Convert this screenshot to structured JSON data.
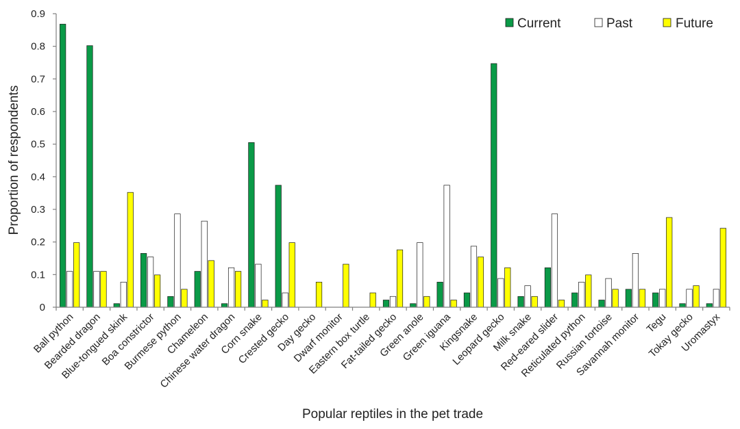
{
  "chart_data": {
    "type": "bar",
    "xlabel": "Popular reptiles in the pet trade",
    "ylabel": "Proportion of respondents",
    "ylim": [
      0,
      0.9
    ],
    "yticks": [
      0,
      0.1,
      0.2,
      0.3,
      0.4,
      0.5,
      0.6,
      0.7,
      0.8,
      0.9
    ],
    "ytick_labels": [
      "0",
      "0.1",
      "0.2",
      "0.3",
      "0.4",
      "0.5",
      "0.6",
      "0.7",
      "0.8",
      "0.9"
    ],
    "legend_position": "top-right",
    "grid": false,
    "categories": [
      "Ball python",
      "Bearded dragon",
      "Blue-tongued skink",
      "Boa constrictor",
      "Burmese python",
      "Chameleon",
      "Chinese water dragon",
      "Corn snake",
      "Crested gecko",
      "Day gecko",
      "Dwarf monitor",
      "Eastern box turtle",
      "Fat-tailed gecko",
      "Green anole",
      "Green iguana",
      "Kingsnake",
      "Leopard gecko",
      "Milk snake",
      "Red-eared slider",
      "Reticulated python",
      "Russian tortoise",
      "Savannah monitor",
      "Tegu",
      "Tokay gecko",
      "Uromastyx"
    ],
    "series": [
      {
        "name": "Current",
        "color": "#0a9a47",
        "values": [
          0.868,
          0.802,
          0.011,
          0.165,
          0.033,
          0.11,
          0.011,
          0.505,
          0.374,
          0,
          0,
          0,
          0.022,
          0.011,
          0.077,
          0.044,
          0.747,
          0.033,
          0.121,
          0.044,
          0.022,
          0.055,
          0.044,
          0.011,
          0.011
        ]
      },
      {
        "name": "Past",
        "color": "#ffffff",
        "values": [
          0.11,
          0.11,
          0.077,
          0.154,
          0.286,
          0.264,
          0.121,
          0.132,
          0.044,
          0,
          0,
          0,
          0.033,
          0.198,
          0.374,
          0.187,
          0.088,
          0.066,
          0.286,
          0.077,
          0.088,
          0.165,
          0.055,
          0.055,
          0.055
        ]
      },
      {
        "name": "Future",
        "color": "#ffff00",
        "values": [
          0.198,
          0.11,
          0.352,
          0.099,
          0.055,
          0.143,
          0.11,
          0.022,
          0.198,
          0.077,
          0.132,
          0.044,
          0.176,
          0.033,
          0.022,
          0.154,
          0.121,
          0.033,
          0.022,
          0.099,
          0.055,
          0.055,
          0.275,
          0.066,
          0.242
        ]
      }
    ]
  }
}
